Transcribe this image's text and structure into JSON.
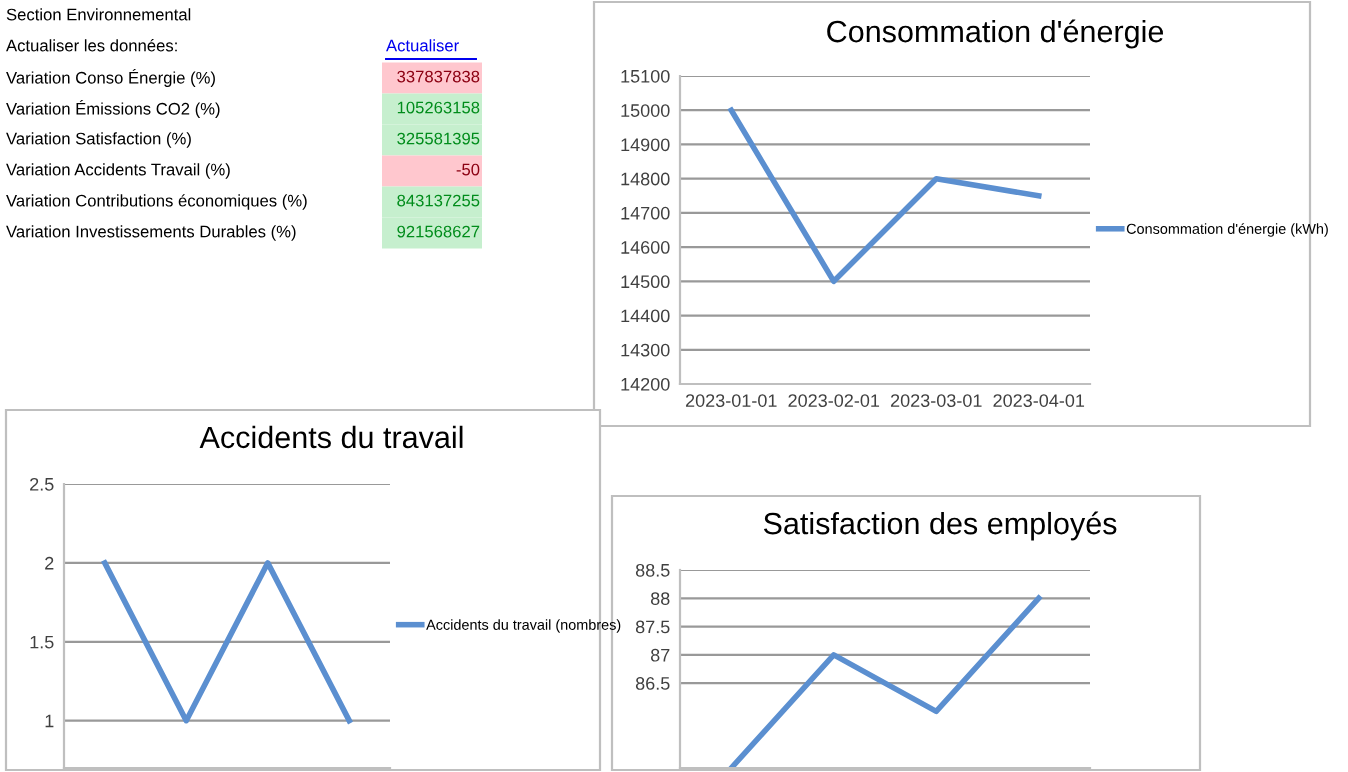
{
  "chart_data": [
    {
      "type": "other",
      "title": "Section Environnemental",
      "subtitle": "Actualiser les données:",
      "annotations": [
        "Actualiser"
      ],
      "categories": [
        "Variation Conso Énergie (%)",
        "Variation Émissions CO2 (%)",
        "Variation Satisfaction (%)",
        "Variation Accidents Travail (%)",
        "Variation Contributions économiques (%)",
        "Variation Investissements Durables (%)"
      ],
      "value_labels": [
        "337837838",
        "105263158",
        "325581395",
        "-50",
        "843137255",
        "921568627"
      ],
      "colors": [
        "#ffc7ce",
        "#c6efce",
        "#c6efce",
        "#ffc7ce",
        "#c6efce",
        "#c6efce"
      ]
    },
    {
      "type": "line",
      "title": "Consommation d'énergie",
      "categories": [
        "2023-01-01",
        "2023-02-01",
        "2023-03-01",
        "2023-04-01"
      ],
      "series": [
        {
          "name": "Consommation d'énergie (kWh)",
          "color": "#5b8fd0",
          "values": [
            15000,
            14500,
            14800,
            14750
          ]
        }
      ],
      "ylim": [
        14200,
        15100
      ],
      "yticks": [
        14200,
        14300,
        14400,
        14500,
        14600,
        14700,
        14800,
        14900,
        15000,
        15100
      ],
      "grid": "y",
      "legend": "right"
    },
    {
      "type": "line",
      "title": "Accidents du travail",
      "categories": [
        null,
        null,
        null,
        null
      ],
      "series": [
        {
          "name": "Accidents du travail (nombres)",
          "color": "#5b8fd0",
          "values": [
            2,
            1,
            2,
            1
          ]
        }
      ],
      "ylim": [
        0.7,
        2.5
      ],
      "yticks": [
        1,
        1.5,
        2,
        2.5
      ],
      "grid": "y",
      "legend": "right",
      "tick_labels": "y"
    },
    {
      "type": "line",
      "title": "Satisfaction des employés",
      "categories": [
        null,
        null,
        null,
        null
      ],
      "series": [
        {
          "color": "#5b8fd0",
          "values": [
            85,
            87,
            86,
            88
          ]
        }
      ],
      "ylim": [
        85,
        88.5
      ],
      "yticks": [
        86.5,
        87,
        87.5,
        88,
        88.5
      ],
      "grid": "y",
      "tick_labels": "y"
    }
  ]
}
